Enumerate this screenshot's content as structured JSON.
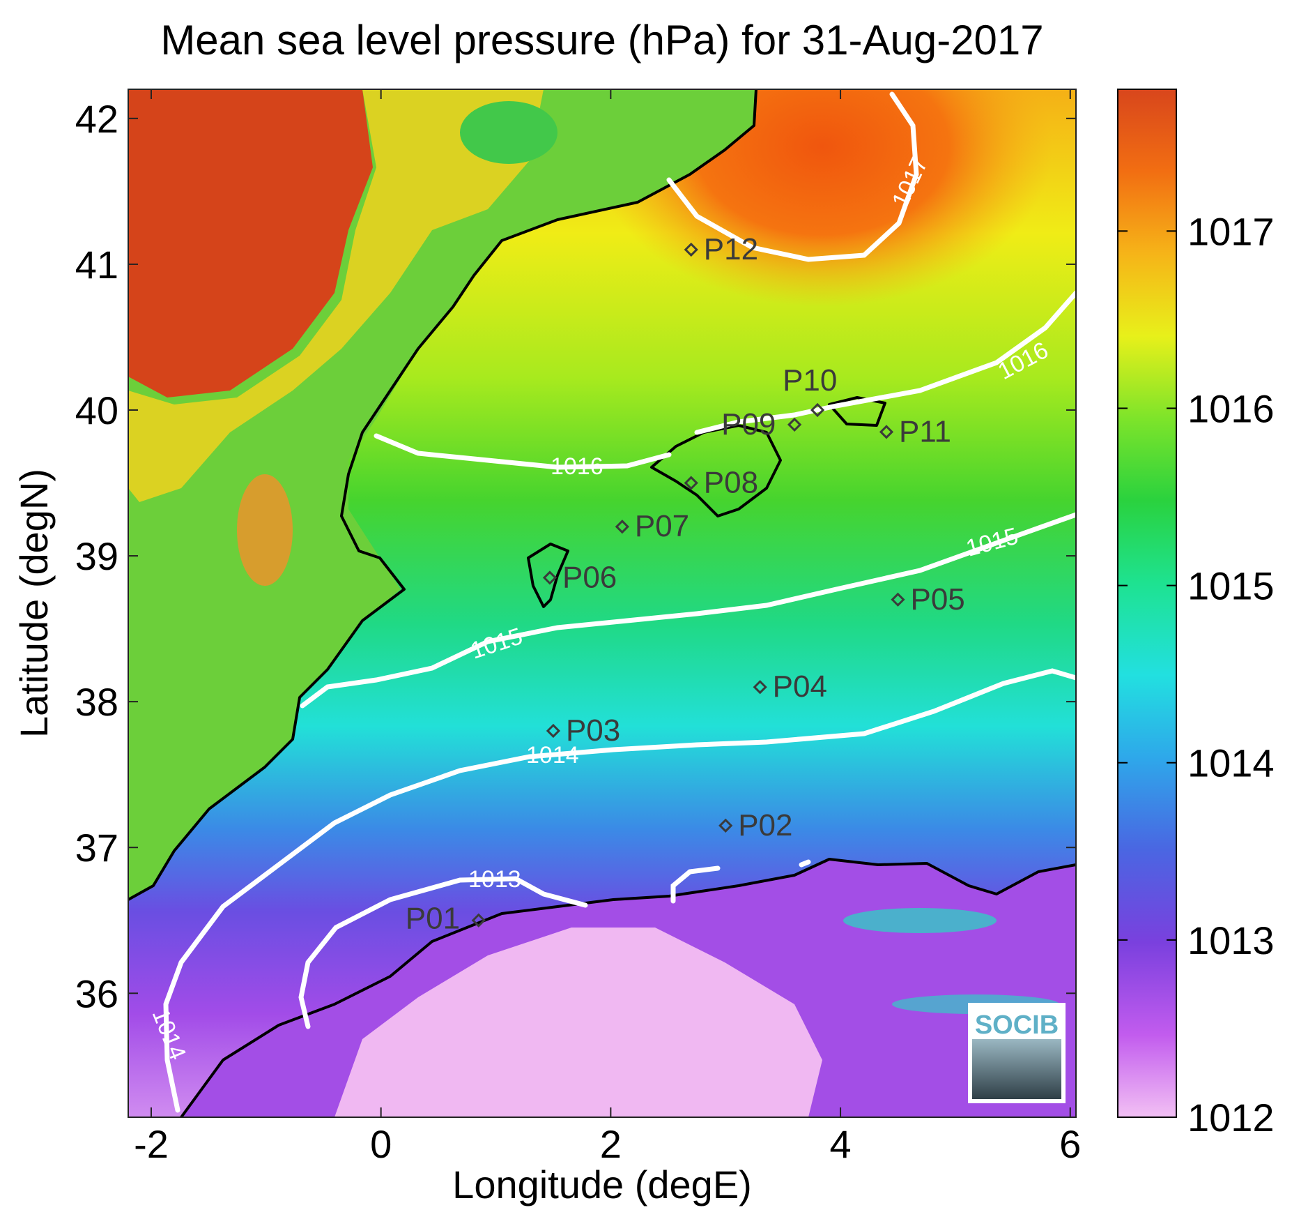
{
  "title": "Mean sea level pressure (hPa) for 31-Aug-2017",
  "colors": {
    "land_high": "#d5441a",
    "sea_high": "#f26a10",
    "mid_high": "#f5e016",
    "mid": "#3fd43a",
    "mid_low": "#2ee0d8",
    "low_blue": "#3f86e6",
    "low_purple": "#7a43de",
    "lowest": "#f0b8f2"
  },
  "chart_data": {
    "type": "heatmap",
    "title": "Mean sea level pressure (hPa) for 31-Aug-2017",
    "xlabel": "Longitude (degE)",
    "ylabel": "Latitude (degN)",
    "xlim": [
      -2.2,
      6.05
    ],
    "ylim": [
      35.15,
      42.2
    ],
    "xticks": [
      -2,
      0,
      2,
      4,
      6
    ],
    "yticks": [
      36,
      37,
      38,
      39,
      40,
      41,
      42
    ],
    "colorbar": {
      "range": [
        1012,
        1017.8
      ],
      "ticks": [
        1012,
        1013,
        1014,
        1015,
        1016,
        1017
      ]
    },
    "stations": [
      {
        "name": "P01",
        "lon": 0.85,
        "lat": 36.5
      },
      {
        "name": "P02",
        "lon": 3.0,
        "lat": 37.15
      },
      {
        "name": "P03",
        "lon": 1.5,
        "lat": 37.8
      },
      {
        "name": "P04",
        "lon": 3.3,
        "lat": 38.1
      },
      {
        "name": "P05",
        "lon": 4.5,
        "lat": 38.7
      },
      {
        "name": "P06",
        "lon": 1.47,
        "lat": 38.85
      },
      {
        "name": "P07",
        "lon": 2.1,
        "lat": 39.2
      },
      {
        "name": "P08",
        "lon": 2.7,
        "lat": 39.5
      },
      {
        "name": "P09",
        "lon": 3.6,
        "lat": 39.9
      },
      {
        "name": "P10",
        "lon": 3.8,
        "lat": 40.0
      },
      {
        "name": "P11",
        "lon": 4.4,
        "lat": 39.85
      },
      {
        "name": "P12",
        "lon": 2.7,
        "lat": 41.1
      }
    ],
    "contours": [
      {
        "level": "1017",
        "label": "1017"
      },
      {
        "level": "1016",
        "label": "1016"
      },
      {
        "level": "1015",
        "label": "1015"
      },
      {
        "level": "1014",
        "label": "1014"
      },
      {
        "level": "1013",
        "label": "1013"
      }
    ]
  },
  "logo": {
    "text": "SOCIB"
  }
}
